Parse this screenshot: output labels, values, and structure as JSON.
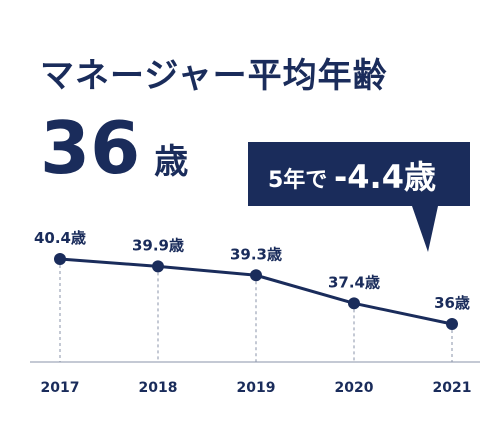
{
  "page": {
    "title": "マネージャー平均年齢",
    "headline_value": "36",
    "headline_unit": "歳"
  },
  "callout": {
    "prefix": "5年で",
    "value": "-4.4歳"
  },
  "colors": {
    "navy": "#1a2c5b",
    "guide": "#8a93a8",
    "background": "#ffffff"
  },
  "chart_data": {
    "type": "line",
    "title": "",
    "xlabel": "",
    "ylabel": "",
    "categories": [
      "2017",
      "2018",
      "2019",
      "2020",
      "2021"
    ],
    "values": [
      40.4,
      39.9,
      39.3,
      37.4,
      36
    ],
    "data_labels": [
      "40.4歳",
      "39.9歳",
      "39.3歳",
      "37.4歳",
      "36歳"
    ],
    "grid": false,
    "legend": "none"
  }
}
